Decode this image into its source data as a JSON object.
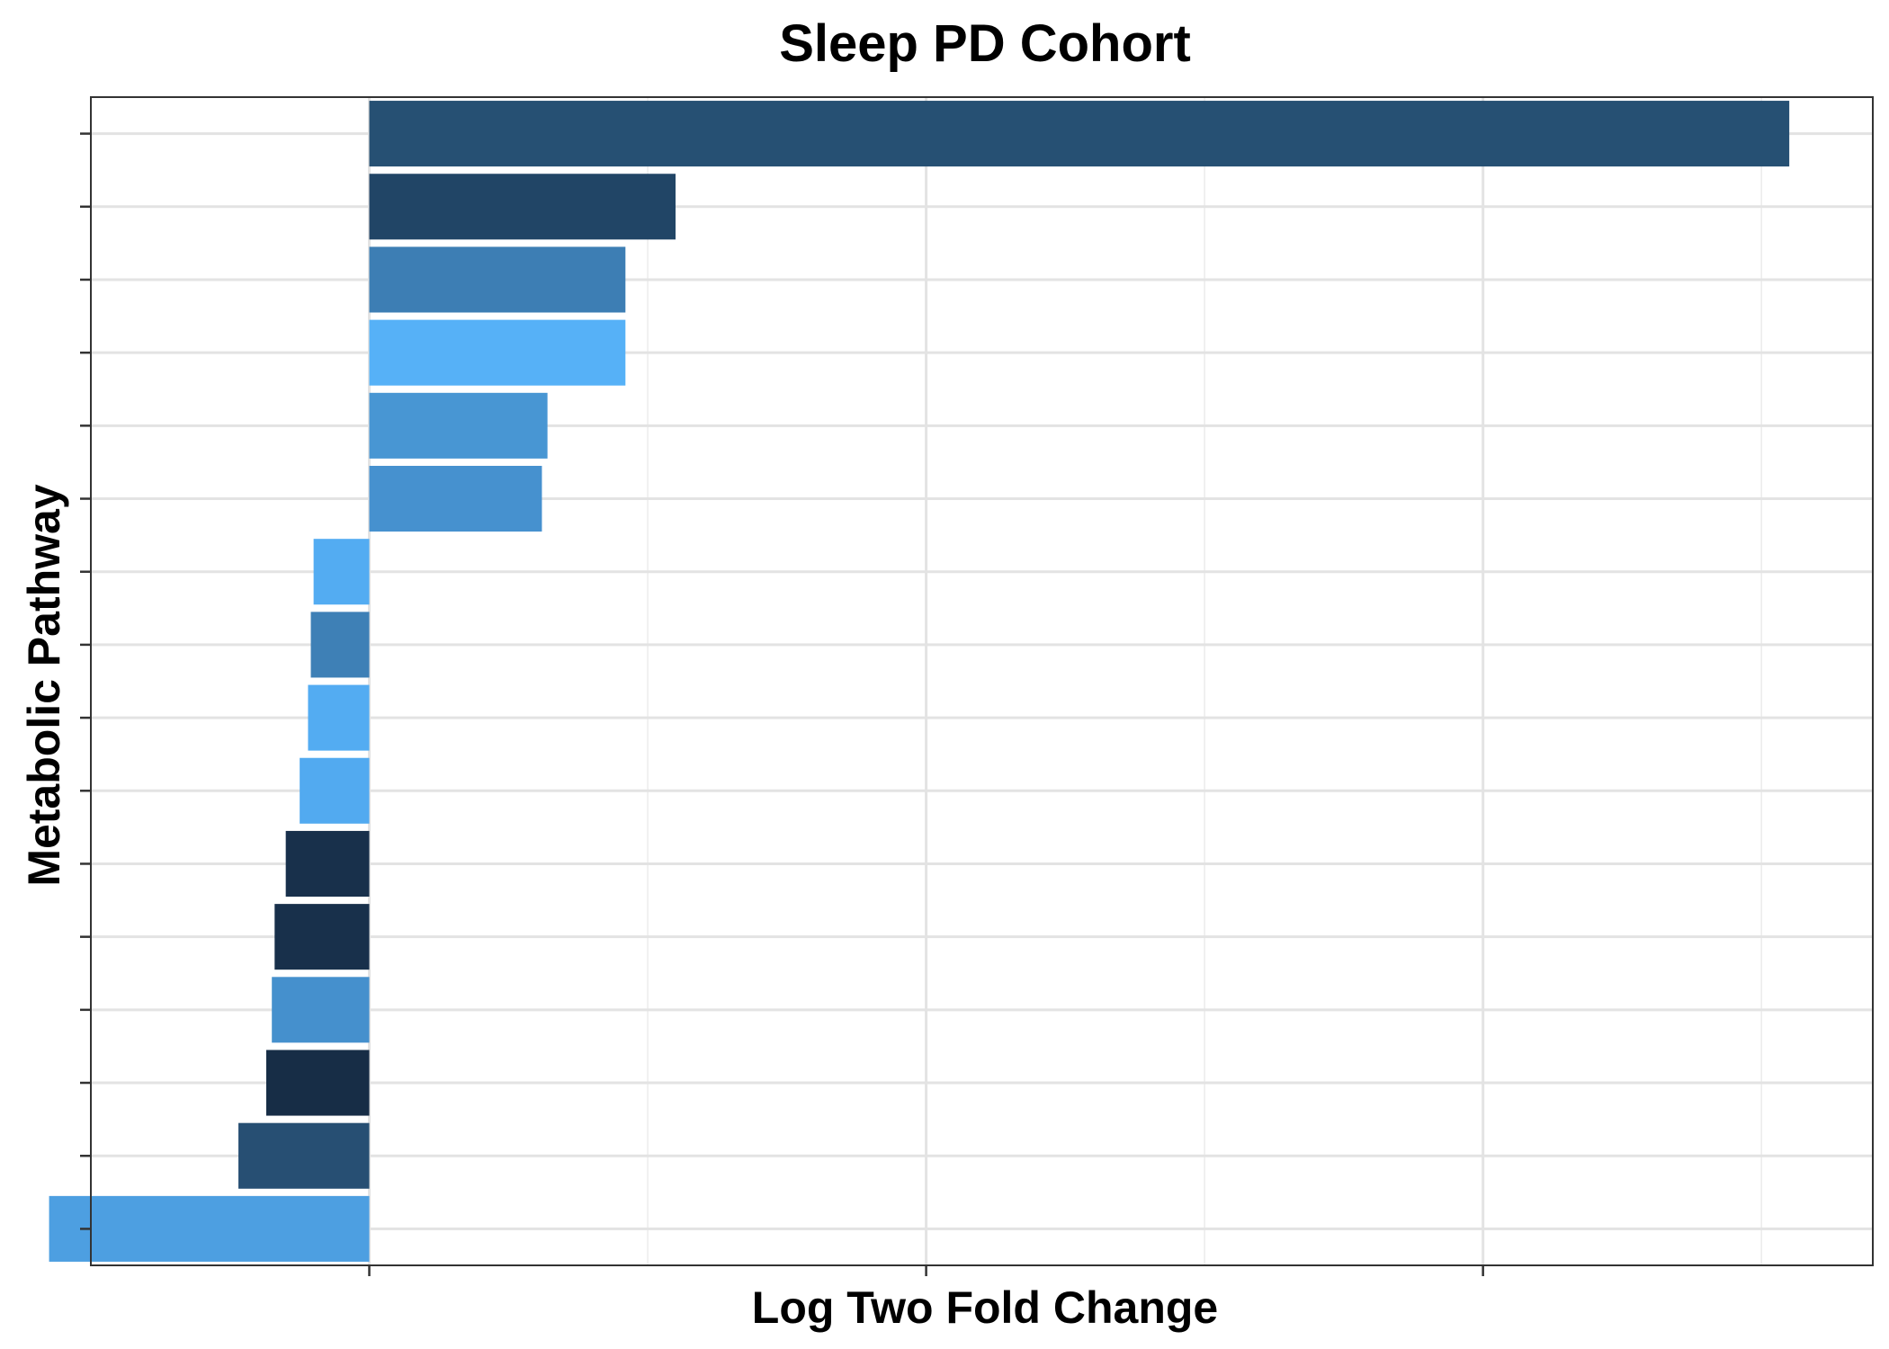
{
  "chart_data": {
    "type": "bar",
    "orientation": "horizontal",
    "title": "Sleep PD Cohort",
    "xlabel": "Log Two Fold Change",
    "ylabel": "Metabolic Pathway",
    "x_tick_labels_visible": false,
    "y_tick_labels_visible": false,
    "xlim": [
      -1.0,
      5.4
    ],
    "x_major_ticks": [
      0,
      2,
      4
    ],
    "x_minor_gridlines": [
      -1,
      1,
      3,
      5
    ],
    "grid": true,
    "legend": "none",
    "values": [
      5.1,
      1.1,
      0.92,
      0.92,
      0.64,
      0.62,
      -0.2,
      -0.21,
      -0.22,
      -0.25,
      -0.3,
      -0.34,
      -0.35,
      -0.37,
      -0.47,
      -1.15
    ],
    "colors": [
      "#265073",
      "#214566",
      "#3d7eb4",
      "#56b1f7",
      "#4896d3",
      "#4691cf",
      "#53acf2",
      "#3e80b6",
      "#53acf2",
      "#52aaf0",
      "#18304b",
      "#18304b",
      "#4590cd",
      "#172d46",
      "#274f73",
      "#4d9fe1"
    ]
  }
}
